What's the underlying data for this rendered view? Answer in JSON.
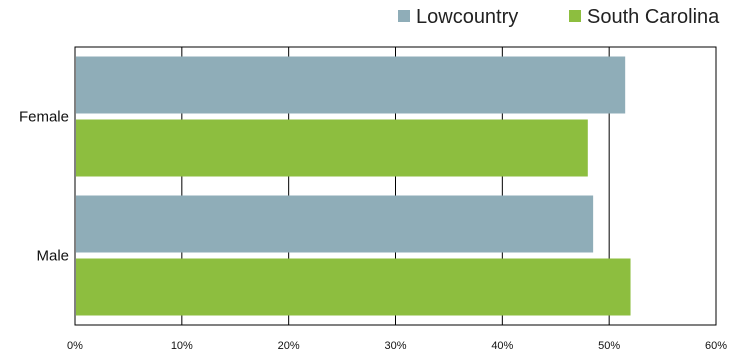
{
  "chart_data": {
    "type": "bar",
    "orientation": "horizontal",
    "categories": [
      "Female",
      "Male"
    ],
    "series": [
      {
        "name": "Lowcountry",
        "color": "#8fadb8",
        "values": [
          51.5,
          48.5
        ]
      },
      {
        "name": "South Carolina",
        "color": "#8dbe3f",
        "values": [
          48.0,
          52.0
        ]
      }
    ],
    "xlim": [
      0,
      60
    ],
    "ticks": [
      {
        "value": 0,
        "label": "0%"
      },
      {
        "value": 10,
        "label": "10%"
      },
      {
        "value": 20,
        "label": "20%"
      },
      {
        "value": 30,
        "label": "30%"
      },
      {
        "value": 40,
        "label": "40%"
      },
      {
        "value": 50,
        "label": "50%"
      },
      {
        "value": 60,
        "label": "60%"
      }
    ],
    "grid": "vertical",
    "legend_position": "top-right"
  }
}
